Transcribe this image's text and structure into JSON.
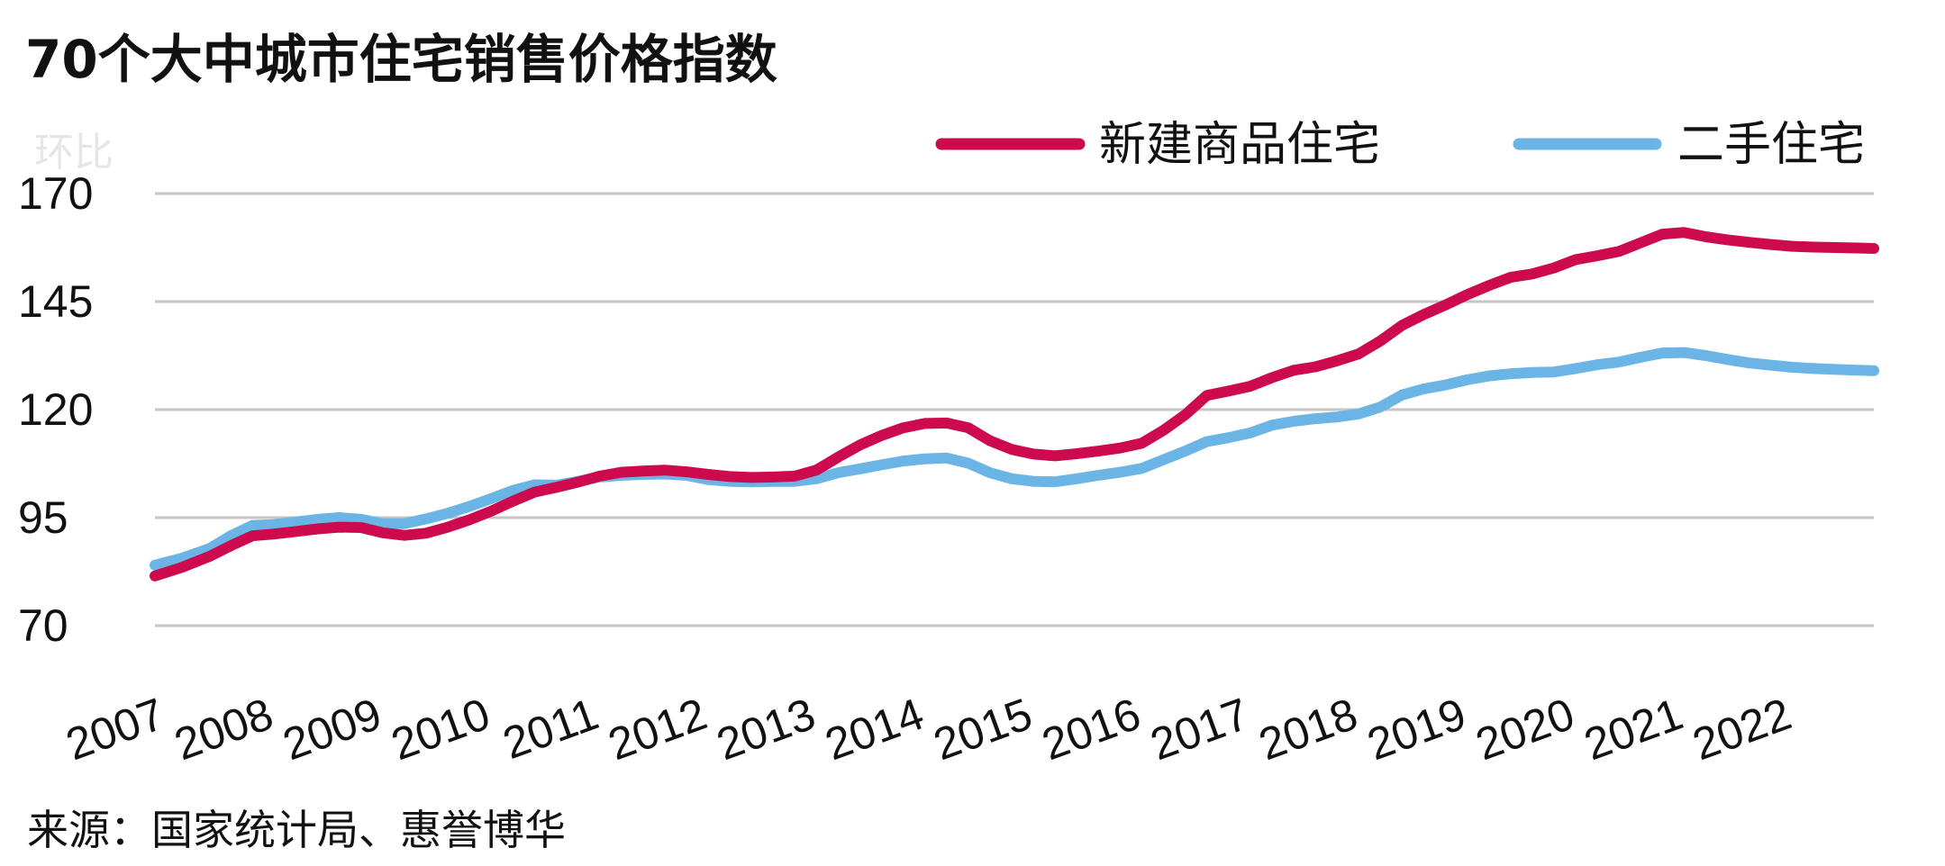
{
  "title": "70个大中城市住宅销售价格指数",
  "faded_label": "环比",
  "source": "来源：国家统计局、惠誉博华",
  "chart_data": {
    "type": "line",
    "title": "70个大中城市住宅销售价格指数",
    "xlabel": "",
    "ylabel": "",
    "ylim": [
      70,
      170
    ],
    "xlim": [
      2007.0,
      2022.85
    ],
    "y_ticks": [
      "70",
      "95",
      "120",
      "145",
      "170"
    ],
    "x_ticks": [
      "2007",
      "2008",
      "2009",
      "2010",
      "2011",
      "2012",
      "2013",
      "2014",
      "2015",
      "2016",
      "2017",
      "2018",
      "2019",
      "2020",
      "2021",
      "2022"
    ],
    "grid": true,
    "legend": "top-right",
    "series": [
      {
        "name": "新建商品住宅",
        "color": "#cc0a4d",
        "points": [
          [
            2007.0,
            81.5
          ],
          [
            2007.25,
            83.5
          ],
          [
            2007.5,
            86.0
          ],
          [
            2007.7,
            88.5
          ],
          [
            2007.9,
            90.8
          ],
          [
            2008.1,
            91.2
          ],
          [
            2008.3,
            91.8
          ],
          [
            2008.5,
            92.4
          ],
          [
            2008.7,
            92.8
          ],
          [
            2008.9,
            92.7
          ],
          [
            2009.1,
            91.5
          ],
          [
            2009.3,
            90.9
          ],
          [
            2009.5,
            91.4
          ],
          [
            2009.7,
            92.8
          ],
          [
            2009.9,
            94.5
          ],
          [
            2010.1,
            96.5
          ],
          [
            2010.3,
            98.8
          ],
          [
            2010.5,
            100.9
          ],
          [
            2010.7,
            102.0
          ],
          [
            2010.9,
            103.2
          ],
          [
            2011.1,
            104.6
          ],
          [
            2011.3,
            105.5
          ],
          [
            2011.5,
            105.8
          ],
          [
            2011.7,
            106.0
          ],
          [
            2011.9,
            105.6
          ],
          [
            2012.1,
            105.0
          ],
          [
            2012.3,
            104.5
          ],
          [
            2012.5,
            104.3
          ],
          [
            2012.7,
            104.4
          ],
          [
            2012.9,
            104.6
          ],
          [
            2013.1,
            106.0
          ],
          [
            2013.3,
            109.0
          ],
          [
            2013.5,
            111.8
          ],
          [
            2013.7,
            114.0
          ],
          [
            2013.9,
            115.8
          ],
          [
            2014.1,
            116.8
          ],
          [
            2014.3,
            116.9
          ],
          [
            2014.5,
            115.8
          ],
          [
            2014.7,
            112.8
          ],
          [
            2014.9,
            110.8
          ],
          [
            2015.1,
            109.7
          ],
          [
            2015.3,
            109.3
          ],
          [
            2015.5,
            109.8
          ],
          [
            2015.7,
            110.4
          ],
          [
            2015.9,
            111.1
          ],
          [
            2016.1,
            112.2
          ],
          [
            2016.3,
            115.2
          ],
          [
            2016.5,
            118.8
          ],
          [
            2016.7,
            123.3
          ],
          [
            2016.9,
            124.3
          ],
          [
            2017.1,
            125.4
          ],
          [
            2017.3,
            127.4
          ],
          [
            2017.5,
            129.1
          ],
          [
            2017.7,
            129.9
          ],
          [
            2017.9,
            131.3
          ],
          [
            2018.1,
            132.9
          ],
          [
            2018.3,
            135.9
          ],
          [
            2018.5,
            139.5
          ],
          [
            2018.7,
            142.0
          ],
          [
            2018.9,
            144.2
          ],
          [
            2019.1,
            146.6
          ],
          [
            2019.3,
            148.7
          ],
          [
            2019.5,
            150.6
          ],
          [
            2019.7,
            151.4
          ],
          [
            2019.9,
            152.8
          ],
          [
            2020.1,
            154.7
          ],
          [
            2020.3,
            155.6
          ],
          [
            2020.5,
            156.6
          ],
          [
            2020.7,
            158.6
          ],
          [
            2020.9,
            160.6
          ],
          [
            2021.1,
            161.0
          ],
          [
            2021.3,
            160.0
          ],
          [
            2021.5,
            159.3
          ],
          [
            2021.7,
            158.7
          ],
          [
            2021.9,
            158.2
          ],
          [
            2022.1,
            157.8
          ],
          [
            2022.3,
            157.6
          ],
          [
            2022.5,
            157.5
          ],
          [
            2022.7,
            157.4
          ],
          [
            2022.85,
            157.3
          ]
        ]
      },
      {
        "name": "二手住宅",
        "color": "#6ab5e6",
        "points": [
          [
            2007.0,
            84.0
          ],
          [
            2007.25,
            85.6
          ],
          [
            2007.5,
            87.8
          ],
          [
            2007.7,
            90.8
          ],
          [
            2007.9,
            93.2
          ],
          [
            2008.1,
            93.4
          ],
          [
            2008.3,
            94.0
          ],
          [
            2008.5,
            94.6
          ],
          [
            2008.7,
            95.0
          ],
          [
            2008.9,
            94.6
          ],
          [
            2009.1,
            93.6
          ],
          [
            2009.3,
            93.6
          ],
          [
            2009.5,
            94.7
          ],
          [
            2009.7,
            96.0
          ],
          [
            2009.9,
            97.6
          ],
          [
            2010.1,
            99.4
          ],
          [
            2010.3,
            101.3
          ],
          [
            2010.5,
            102.6
          ],
          [
            2010.7,
            102.5
          ],
          [
            2010.9,
            103.4
          ],
          [
            2011.1,
            104.4
          ],
          [
            2011.3,
            104.8
          ],
          [
            2011.5,
            105.0
          ],
          [
            2011.7,
            105.1
          ],
          [
            2011.9,
            104.8
          ],
          [
            2012.1,
            103.8
          ],
          [
            2012.3,
            103.4
          ],
          [
            2012.5,
            103.3
          ],
          [
            2012.7,
            103.4
          ],
          [
            2012.9,
            103.4
          ],
          [
            2013.1,
            104.0
          ],
          [
            2013.3,
            105.4
          ],
          [
            2013.5,
            106.3
          ],
          [
            2013.7,
            107.2
          ],
          [
            2013.9,
            108.1
          ],
          [
            2014.1,
            108.6
          ],
          [
            2014.3,
            108.8
          ],
          [
            2014.5,
            107.6
          ],
          [
            2014.7,
            105.4
          ],
          [
            2014.9,
            104.0
          ],
          [
            2015.1,
            103.4
          ],
          [
            2015.3,
            103.3
          ],
          [
            2015.5,
            104.0
          ],
          [
            2015.7,
            104.8
          ],
          [
            2015.9,
            105.5
          ],
          [
            2016.1,
            106.4
          ],
          [
            2016.3,
            108.4
          ],
          [
            2016.5,
            110.4
          ],
          [
            2016.7,
            112.6
          ],
          [
            2016.9,
            113.5
          ],
          [
            2017.1,
            114.6
          ],
          [
            2017.3,
            116.4
          ],
          [
            2017.5,
            117.3
          ],
          [
            2017.7,
            117.9
          ],
          [
            2017.9,
            118.3
          ],
          [
            2018.1,
            119.0
          ],
          [
            2018.3,
            120.6
          ],
          [
            2018.5,
            123.4
          ],
          [
            2018.7,
            124.8
          ],
          [
            2018.9,
            125.7
          ],
          [
            2019.1,
            126.9
          ],
          [
            2019.3,
            127.8
          ],
          [
            2019.5,
            128.3
          ],
          [
            2019.7,
            128.6
          ],
          [
            2019.9,
            128.7
          ],
          [
            2020.1,
            129.5
          ],
          [
            2020.3,
            130.4
          ],
          [
            2020.5,
            131.0
          ],
          [
            2020.7,
            132.1
          ],
          [
            2020.9,
            133.1
          ],
          [
            2021.1,
            133.2
          ],
          [
            2021.3,
            132.5
          ],
          [
            2021.5,
            131.6
          ],
          [
            2021.7,
            130.8
          ],
          [
            2021.9,
            130.3
          ],
          [
            2022.1,
            129.8
          ],
          [
            2022.3,
            129.5
          ],
          [
            2022.5,
            129.3
          ],
          [
            2022.7,
            129.1
          ],
          [
            2022.85,
            129.0
          ]
        ]
      }
    ]
  }
}
